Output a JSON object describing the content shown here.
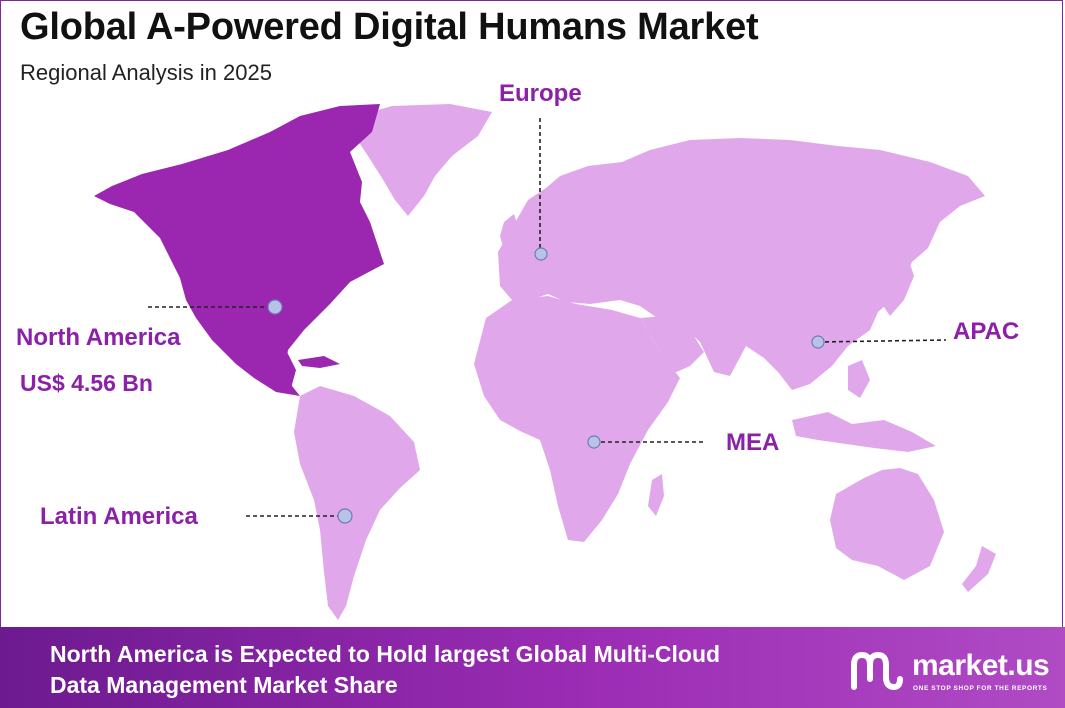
{
  "header": {
    "title": "Global A-Powered Digital Humans Market",
    "subtitle": "Regional Analysis in 2025"
  },
  "map": {
    "highlight_color": "#9b27b0",
    "base_color": "#e0a8ea",
    "regions": [
      {
        "id": "north-america",
        "label": "North America",
        "value": "US$ 4.56 Bn",
        "highlighted": true
      },
      {
        "id": "europe",
        "label": "Europe",
        "highlighted": false
      },
      {
        "id": "apac",
        "label": "APAC",
        "highlighted": false
      },
      {
        "id": "mea",
        "label": "MEA",
        "highlighted": false
      },
      {
        "id": "latin-america",
        "label": "Latin America",
        "highlighted": false
      }
    ]
  },
  "footer": {
    "line1": "North America is Expected to Hold largest Global Multi-Cloud",
    "line2": "Data Management Market Share",
    "brand_name": "market.us",
    "brand_tagline": "ONE STOP SHOP FOR THE REPORTS",
    "brand_icon": "market-us-logo-icon"
  }
}
